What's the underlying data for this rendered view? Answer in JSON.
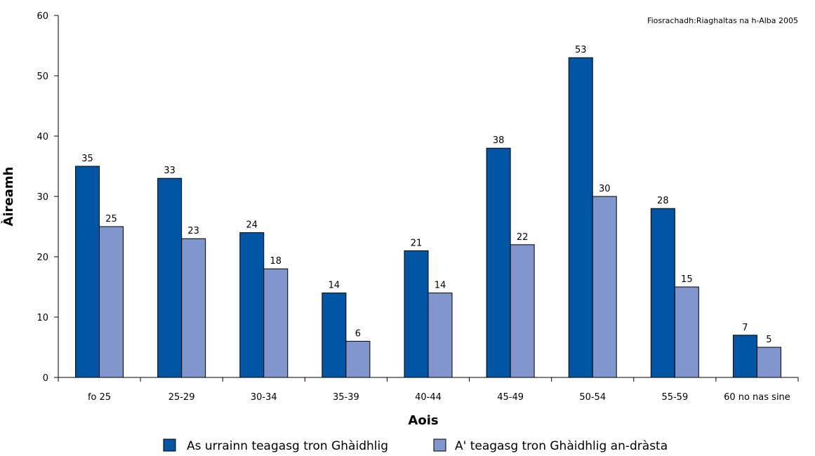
{
  "source_note": "Fiosrachadh:Riaghaltas na h-Alba 2005",
  "chart_data": {
    "type": "bar",
    "categories": [
      "fo 25",
      "25-29",
      "30-34",
      "35-39",
      "40-44",
      "45-49",
      "50-54",
      "55-59",
      "60 no nas sine"
    ],
    "series": [
      {
        "name": "As urrainn teagasg tron Ghàidhlig",
        "color": "#0055a5",
        "values": [
          35,
          33,
          24,
          14,
          21,
          38,
          53,
          28,
          7
        ]
      },
      {
        "name": "A' teagasg tron Ghàidhlig an-dràsta",
        "color": "#8096cc",
        "values": [
          25,
          23,
          18,
          6,
          14,
          22,
          30,
          15,
          5
        ]
      }
    ],
    "title": "",
    "xlabel": "Aois",
    "ylabel": "Àireamh",
    "ylim": [
      0,
      60
    ],
    "yticks": [
      0,
      10,
      20,
      30,
      40,
      50,
      60
    ],
    "grid": false,
    "legend": "bottom"
  }
}
